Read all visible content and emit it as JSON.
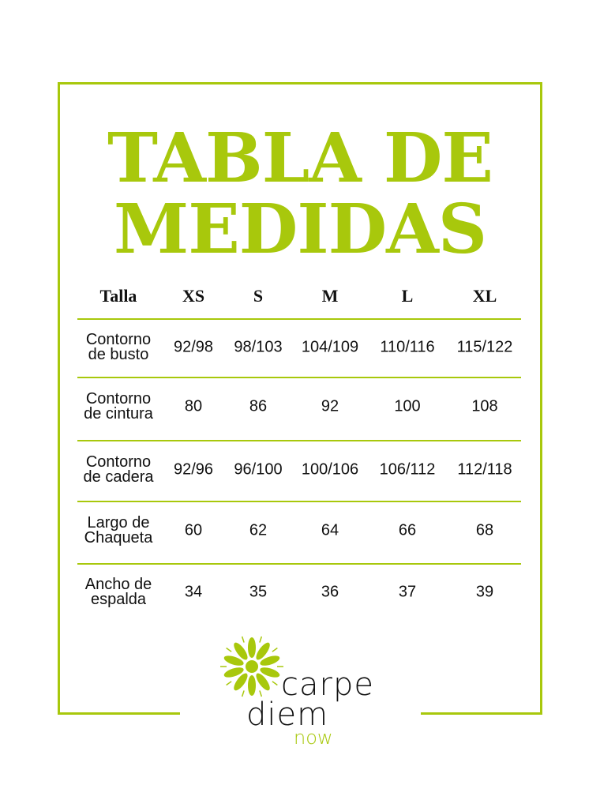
{
  "title": {
    "line1": "TABLA DE",
    "line2": "MEDIDAS"
  },
  "accent_color": "#a8c80c",
  "table": {
    "headers": [
      "Talla",
      "XS",
      "S",
      "M",
      "L",
      "XL"
    ],
    "rows": [
      {
        "label1": "Contorno",
        "label2": "de busto",
        "values": [
          "92/98",
          "98/103",
          "104/109",
          "110/116",
          "115/122"
        ]
      },
      {
        "label1": "Contorno",
        "label2": "de cintura",
        "values": [
          "80",
          "86",
          "92",
          "100",
          "108"
        ]
      },
      {
        "label1": "Contorno",
        "label2": "de cadera",
        "values": [
          "92/96",
          "96/100",
          "100/106",
          "106/112",
          "112/118"
        ]
      },
      {
        "label1": "Largo de",
        "label2": "Chaqueta",
        "values": [
          "60",
          "62",
          "64",
          "66",
          "68"
        ]
      },
      {
        "label1": "Ancho de",
        "label2": "espalda",
        "values": [
          "34",
          "35",
          "36",
          "37",
          "39"
        ]
      }
    ]
  },
  "logo": {
    "line1": "carpe",
    "line2": "diem",
    "line3": "now",
    "icon": "daisy-flower-icon"
  }
}
